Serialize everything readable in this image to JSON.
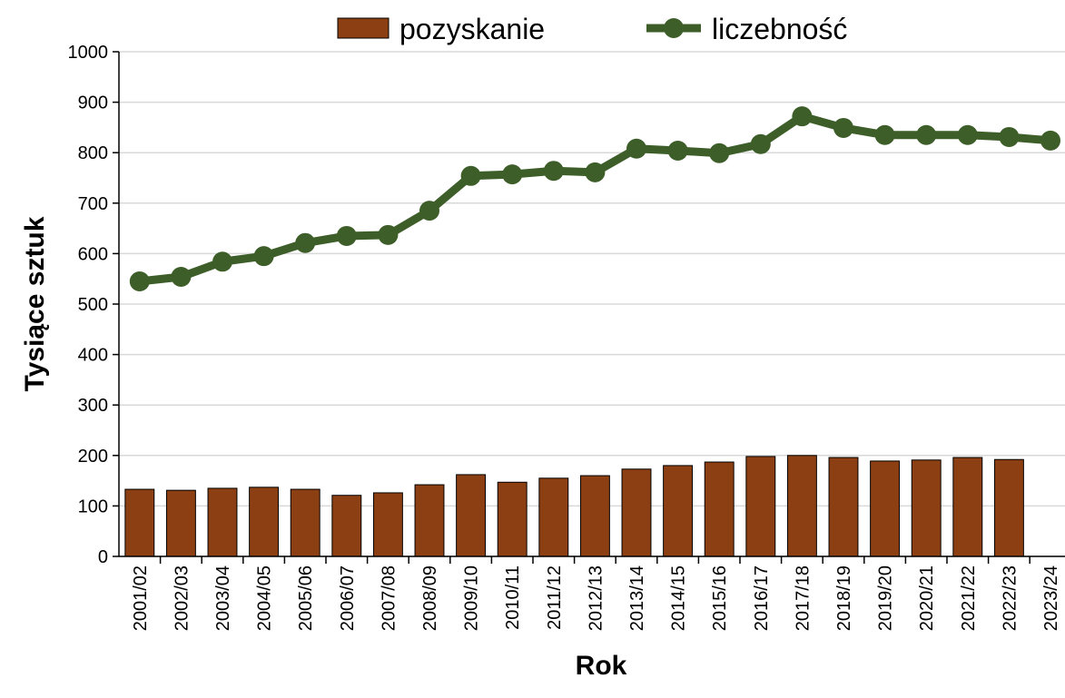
{
  "chart_data": {
    "type": "bar_line",
    "x_label": "Rok",
    "y_label": "Tysiące sztuk",
    "categories": [
      "2001/02",
      "2002/03",
      "2003/04",
      "2004/05",
      "2005/06",
      "2006/07",
      "2007/08",
      "2008/09",
      "2009/10",
      "2010/11",
      "2011/12",
      "2012/13",
      "2013/14",
      "2014/15",
      "2015/16",
      "2016/17",
      "2017/18",
      "2018/19",
      "2019/20",
      "2020/21",
      "2021/22",
      "2022/23",
      "2023/24"
    ],
    "series": [
      {
        "name": "pozyskanie",
        "type": "bar",
        "color": "#8b3f12",
        "values": [
          133,
          131,
          135,
          137,
          133,
          121,
          126,
          142,
          162,
          147,
          155,
          160,
          173,
          180,
          187,
          198,
          200,
          196,
          189,
          191,
          196,
          192,
          null
        ]
      },
      {
        "name": "liczebność",
        "type": "line",
        "color": "#3d5e29",
        "values": [
          545,
          554,
          584,
          595,
          621,
          635,
          637,
          685,
          754,
          757,
          764,
          761,
          808,
          804,
          799,
          817,
          872,
          849,
          835,
          835,
          835,
          831,
          824
        ]
      }
    ],
    "ylim": [
      0,
      1000
    ],
    "yticks": [
      0,
      100,
      200,
      300,
      400,
      500,
      600,
      700,
      800,
      900,
      1000
    ],
    "grid": true,
    "legend": "top"
  }
}
